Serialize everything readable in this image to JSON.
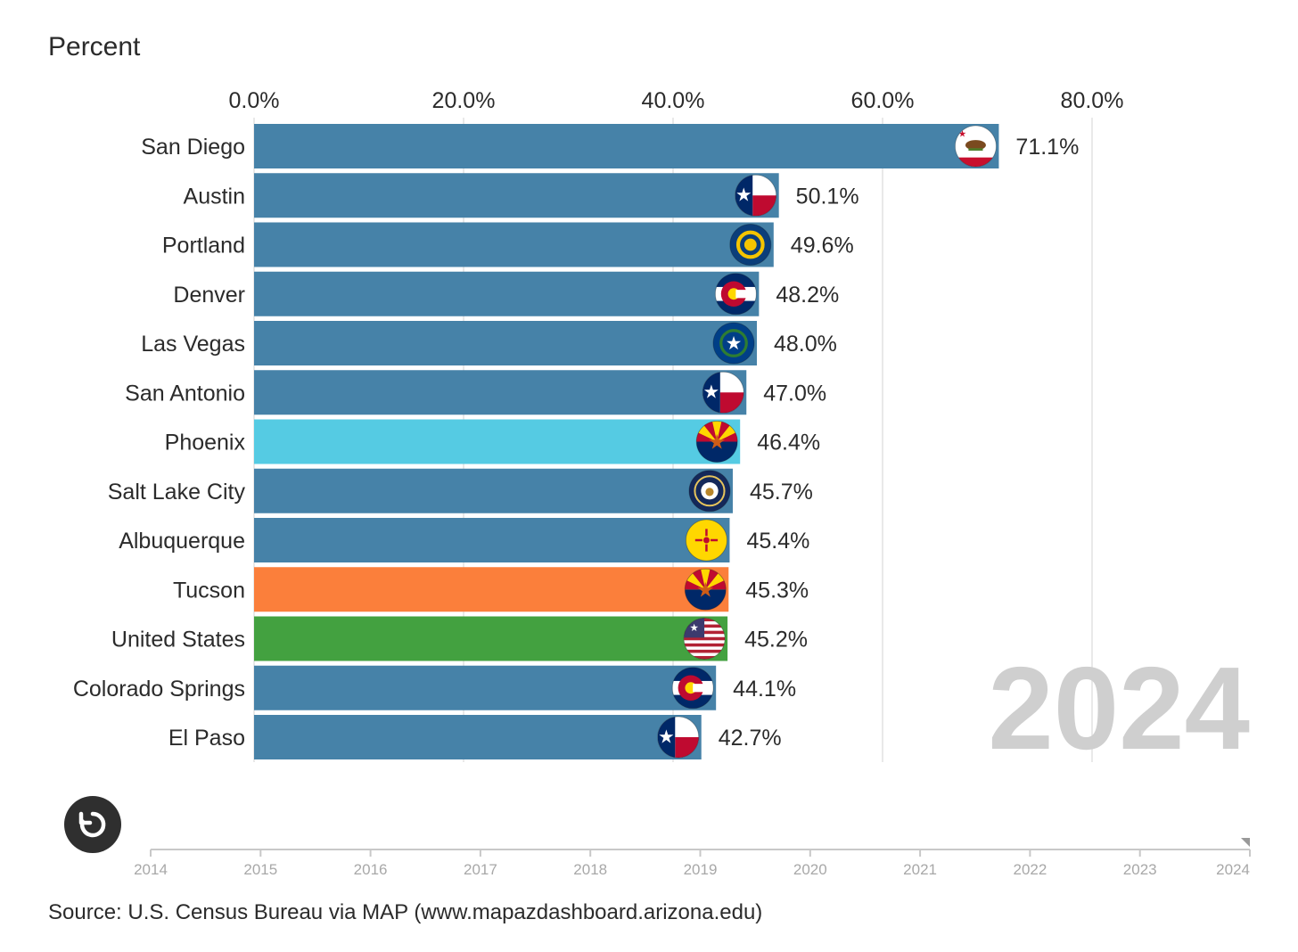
{
  "chart_data": {
    "type": "bar",
    "orientation": "horizontal",
    "ylabel": "Percent",
    "xlim": [
      0,
      80
    ],
    "xticks": [
      "0.0%",
      "20.0%",
      "40.0%",
      "60.0%",
      "80.0%"
    ],
    "year_label": "2024",
    "categories": [
      "San Diego",
      "Austin",
      "Portland",
      "Denver",
      "Las Vegas",
      "San Antonio",
      "Phoenix",
      "Salt Lake City",
      "Albuquerque",
      "Tucson",
      "United States",
      "Colorado Springs",
      "El Paso"
    ],
    "values": [
      71.1,
      50.1,
      49.6,
      48.2,
      48.0,
      47.0,
      46.4,
      45.7,
      45.4,
      45.3,
      45.2,
      44.1,
      42.7
    ],
    "value_labels": [
      "71.1%",
      "50.1%",
      "49.6%",
      "48.2%",
      "48.0%",
      "47.0%",
      "46.4%",
      "45.7%",
      "45.4%",
      "45.3%",
      "45.2%",
      "44.1%",
      "42.7%"
    ],
    "colors": [
      "#4682a8",
      "#4682a8",
      "#4682a8",
      "#4682a8",
      "#4682a8",
      "#4682a8",
      "#55cbe3",
      "#4682a8",
      "#4682a8",
      "#fb7f3b",
      "#43a140",
      "#4682a8",
      "#4682a8"
    ],
    "flags": [
      "california-flag",
      "texas-flag",
      "oregon-flag",
      "colorado-flag",
      "nevada-flag",
      "texas-flag",
      "arizona-flag",
      "utah-flag",
      "new-mexico-flag",
      "arizona-flag",
      "usa-flag",
      "colorado-flag",
      "texas-flag"
    ],
    "timeline": {
      "years": [
        "2014",
        "2015",
        "2016",
        "2017",
        "2018",
        "2019",
        "2020",
        "2021",
        "2022",
        "2023",
        "2024"
      ],
      "current": "2024"
    }
  },
  "source": "Source: U.S. Census Bureau via MAP (www.mapazdashboard.arizona.edu)",
  "replay_icon": "replay-icon"
}
